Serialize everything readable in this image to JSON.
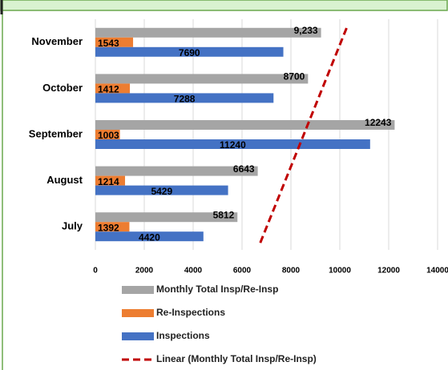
{
  "chart_data": {
    "type": "bar",
    "orientation": "horizontal",
    "categories": [
      "November",
      "October",
      "September",
      "August",
      "July"
    ],
    "series": [
      {
        "name": "Monthly Total Insp/Re-Insp",
        "color": "#a5a5a5",
        "values": [
          9233,
          8700,
          12243,
          6643,
          5812
        ],
        "value_labels": [
          "9,233",
          "8700",
          "12243",
          "6643",
          "5812"
        ]
      },
      {
        "name": "Re-Inspections",
        "color": "#ed7d31",
        "values": [
          1543,
          1412,
          1003,
          1214,
          1392
        ]
      },
      {
        "name": "Inspections",
        "color": "#4472c4",
        "values": [
          7690,
          7288,
          11240,
          5429,
          4420
        ]
      }
    ],
    "trendline": {
      "name": "Linear (Monthly Total Insp/Re-Insp)",
      "type": "linear",
      "series": 0,
      "color": "#c00000"
    },
    "xlim": [
      0,
      14000
    ],
    "xticks": [
      0,
      2000,
      4000,
      6000,
      8000,
      10000,
      12000,
      14000
    ],
    "grid": true
  }
}
